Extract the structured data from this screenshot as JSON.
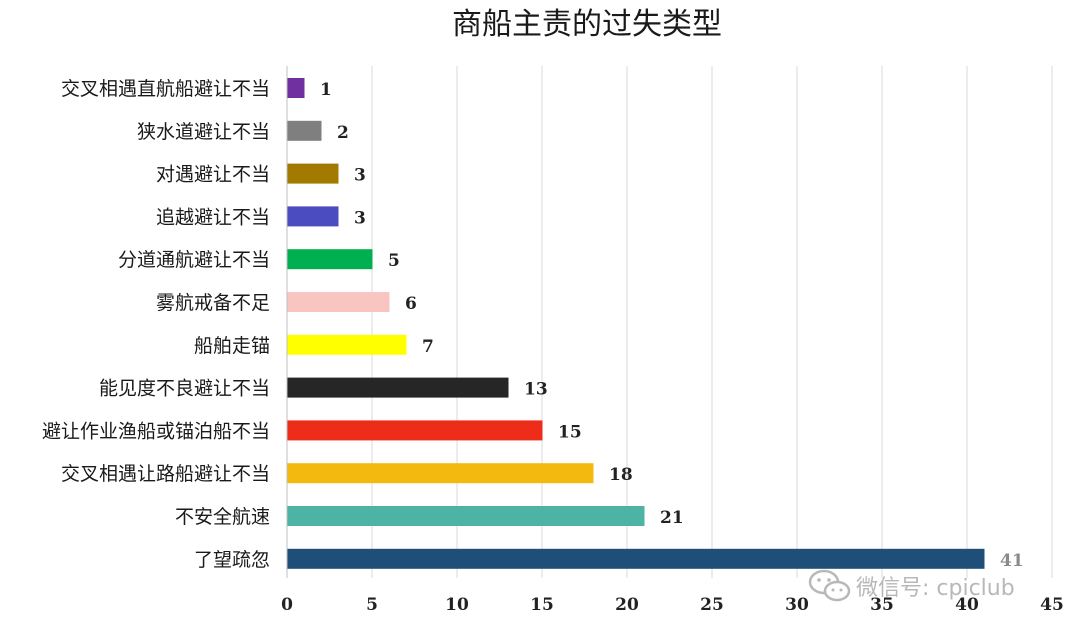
{
  "chart_data": {
    "type": "bar",
    "orientation": "horizontal",
    "title": "商船主责的过失类型",
    "xlabel": "",
    "ylabel": "",
    "xlim": [
      0,
      45
    ],
    "ticks": [
      0,
      5,
      10,
      15,
      20,
      25,
      30,
      35,
      40,
      45
    ],
    "grid": true,
    "legend": "none",
    "categories": [
      "交叉相遇直航船避让不当",
      "狭水道避让不当",
      "对遇避让不当",
      "追越避让不当",
      "分道通航避让不当",
      "雾航戒备不足",
      "船舶走锚",
      "能见度不良避让不当",
      "避让作业渔船或锚泊船不当",
      "交叉相遇让路船避让不当",
      "不安全航速",
      "了望疏忽"
    ],
    "values": [
      1,
      2,
      3,
      3,
      5,
      6,
      7,
      13,
      15,
      18,
      21,
      41
    ],
    "colors": [
      "#7030a0",
      "#7f7f7f",
      "#a37a00",
      "#4a4cbf",
      "#00b050",
      "#f8c5c0",
      "#ffff00",
      "#262626",
      "#ee2c1a",
      "#f4b90e",
      "#4db3a4",
      "#1f4e79"
    ]
  },
  "watermark": {
    "text": "微信号: cpiclub",
    "icon": "wechat-icon"
  }
}
